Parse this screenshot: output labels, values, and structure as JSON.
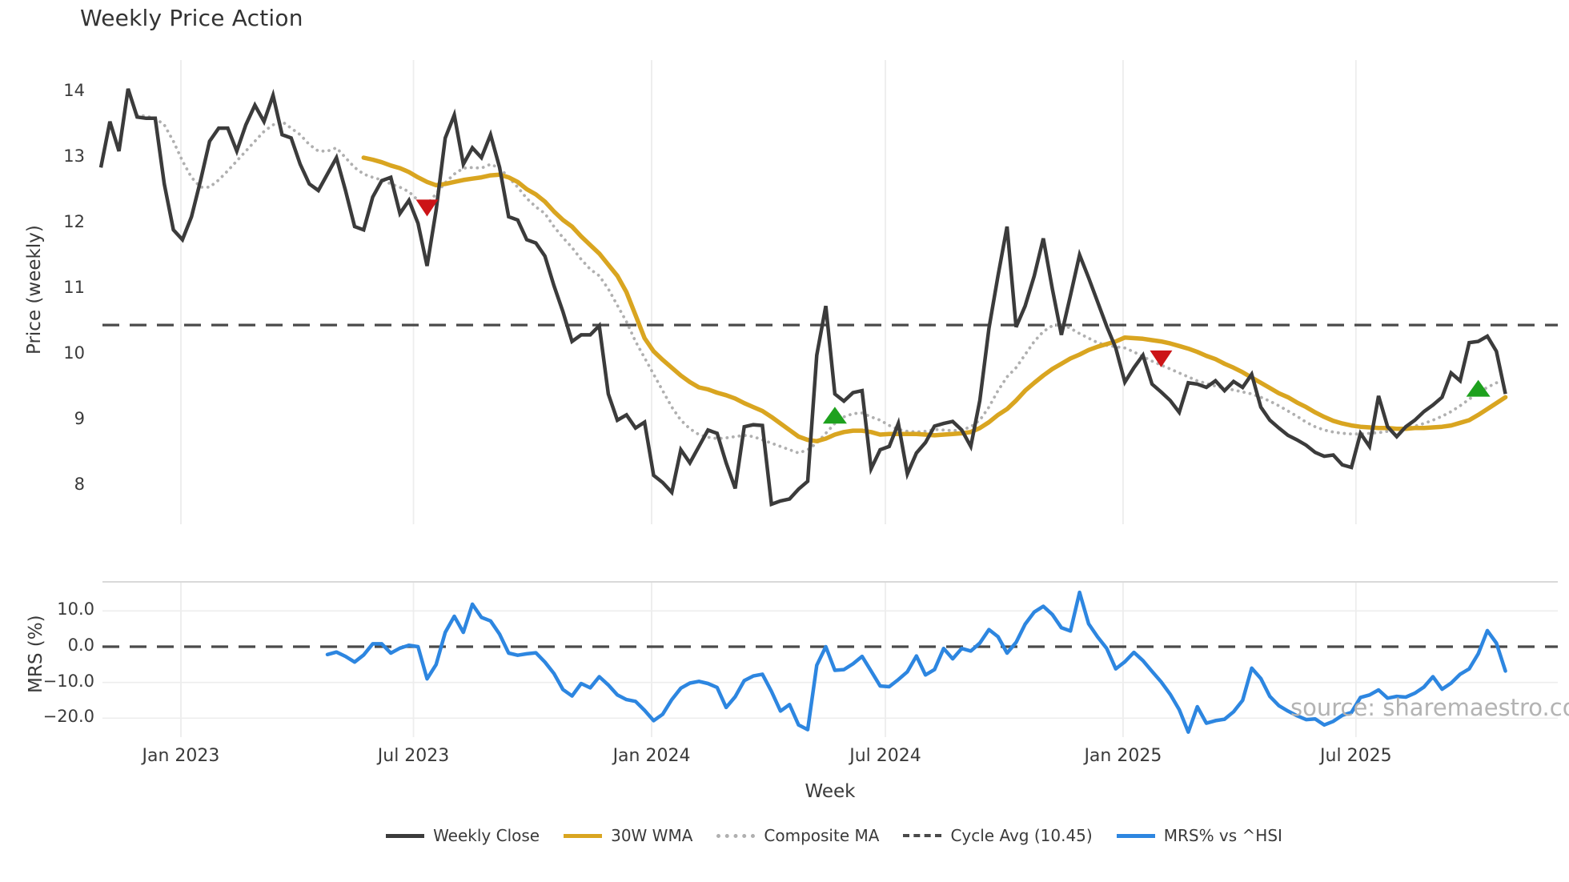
{
  "title": "Weekly Price Action",
  "watermark": "source: sharemaestro.com",
  "colors": {
    "weekly_close": "#3b3b3b",
    "wma_30w": "#d9a520",
    "composite_ma": "#b0b0b0",
    "cycle_avg": "#4a4a4a",
    "mrs_line": "#2d86e0",
    "sell_marker": "#cc1417",
    "buy_marker": "#1ea11e",
    "gridline": "#ededed",
    "panel_border": "#d9d9d9"
  },
  "legend": {
    "items": [
      {
        "label": "Weekly Close",
        "style": "line-dark"
      },
      {
        "label": "30W WMA",
        "style": "line-gold"
      },
      {
        "label": "Composite MA",
        "style": "line-dotted"
      },
      {
        "label": "Cycle Avg (10.45)",
        "style": "line-dashed"
      },
      {
        "label": "MRS% vs ^HSI",
        "style": "line-blue"
      }
    ]
  },
  "chart_data": [
    {
      "type": "line",
      "title": "Weekly Price Action",
      "xlabel": "Week",
      "ylabel": "Price (weekly)",
      "ylim": [
        7.4,
        14.5
      ],
      "y_ticks": [
        8,
        9,
        10,
        11,
        12,
        13,
        14
      ],
      "x_ticks": [
        {
          "label": "Jan 2023",
          "week": 8.83
        },
        {
          "label": "Jul 2023",
          "week": 34.5
        },
        {
          "label": "Jan 2024",
          "week": 60.78
        },
        {
          "label": "Jul 2024",
          "week": 86.57
        },
        {
          "label": "Jan 2025",
          "week": 112.8
        },
        {
          "label": "Jul 2025",
          "week": 138.5
        }
      ],
      "grid": "vertical",
      "legend_position": "bottom",
      "reference_lines": [
        {
          "name": "Cycle Avg",
          "value": 10.45,
          "style": "dashed"
        }
      ],
      "markers": {
        "sell_signals": [
          {
            "week": 36,
            "price": 12.24
          },
          {
            "week": 117,
            "price": 9.94
          }
        ],
        "buy_signals": [
          {
            "week": 81,
            "price": 9.07
          },
          {
            "week": 152,
            "price": 9.48
          }
        ]
      },
      "series": [
        {
          "name": "Weekly Close",
          "start_week": 0,
          "values": [
            12.85,
            13.55,
            13.1,
            14.05,
            13.62,
            13.6,
            13.6,
            12.6,
            11.9,
            11.75,
            12.1,
            12.65,
            13.25,
            13.45,
            13.45,
            13.1,
            13.5,
            13.8,
            13.55,
            13.95,
            13.35,
            13.3,
            12.9,
            12.6,
            12.5,
            12.75,
            13.0,
            12.5,
            11.95,
            11.9,
            12.4,
            12.65,
            12.7,
            12.15,
            12.35,
            12.0,
            11.35,
            12.2,
            13.3,
            13.65,
            12.9,
            13.15,
            13.0,
            13.35,
            12.85,
            12.1,
            12.05,
            11.75,
            11.7,
            11.5,
            11.05,
            10.65,
            10.2,
            10.3,
            10.3,
            10.44,
            9.4,
            9.0,
            9.08,
            8.88,
            8.97,
            8.16,
            8.05,
            7.9,
            8.55,
            8.35,
            8.6,
            8.85,
            8.8,
            8.35,
            7.96,
            8.9,
            8.93,
            8.92,
            7.72,
            7.77,
            7.8,
            7.95,
            8.07,
            9.99,
            10.74,
            9.4,
            9.29,
            9.42,
            9.45,
            8.26,
            8.55,
            8.6,
            8.95,
            8.18,
            8.5,
            8.66,
            8.91,
            8.95,
            8.98,
            8.85,
            8.6,
            9.3,
            10.4,
            11.2,
            11.95,
            10.42,
            10.74,
            11.2,
            11.77,
            11.0,
            10.3,
            10.9,
            11.52,
            11.17,
            10.8,
            10.43,
            10.1,
            9.58,
            9.8,
            9.99,
            9.55,
            9.43,
            9.3,
            9.12,
            9.57,
            9.55,
            9.5,
            9.6,
            9.45,
            9.59,
            9.5,
            9.7,
            9.2,
            9.0,
            8.88,
            8.77,
            8.7,
            8.62,
            8.51,
            8.45,
            8.47,
            8.32,
            8.28,
            8.8,
            8.6,
            9.37,
            8.9,
            8.75,
            8.9,
            9.0,
            9.13,
            9.23,
            9.35,
            9.72,
            9.6,
            10.18,
            10.2,
            10.28,
            10.05,
            9.4
          ]
        },
        {
          "name": "30W WMA",
          "start_week": 29,
          "values": [
            13.0,
            12.97,
            12.93,
            12.88,
            12.84,
            12.78,
            12.7,
            12.63,
            12.58,
            12.6,
            12.63,
            12.66,
            12.68,
            12.7,
            12.73,
            12.74,
            12.7,
            12.63,
            12.52,
            12.44,
            12.33,
            12.18,
            12.05,
            11.95,
            11.8,
            11.67,
            11.54,
            11.37,
            11.2,
            10.95,
            10.6,
            10.25,
            10.05,
            9.92,
            9.8,
            9.68,
            9.58,
            9.5,
            9.47,
            9.42,
            9.38,
            9.33,
            9.26,
            9.2,
            9.14,
            9.05,
            8.95,
            8.85,
            8.75,
            8.7,
            8.68,
            8.72,
            8.78,
            8.82,
            8.84,
            8.84,
            8.82,
            8.78,
            8.79,
            8.79,
            8.79,
            8.79,
            8.78,
            8.77,
            8.78,
            8.79,
            8.8,
            8.82,
            8.88,
            8.97,
            9.08,
            9.17,
            9.3,
            9.45,
            9.57,
            9.68,
            9.78,
            9.86,
            9.94,
            10.0,
            10.07,
            10.12,
            10.16,
            10.2,
            10.26,
            10.25,
            10.24,
            10.22,
            10.2,
            10.17,
            10.13,
            10.09,
            10.04,
            9.98,
            9.93,
            9.86,
            9.8,
            9.73,
            9.65,
            9.57,
            9.49,
            9.41,
            9.35,
            9.27,
            9.2,
            9.12,
            9.05,
            8.99,
            8.95,
            8.92,
            8.9,
            8.89,
            8.88,
            8.88,
            8.87,
            8.87,
            8.88,
            8.88,
            8.89,
            8.9,
            8.92,
            8.96,
            9.0,
            9.08,
            9.17,
            9.26,
            9.35
          ]
        },
        {
          "name": "Composite MA",
          "start_week": 4,
          "values": [
            13.65,
            13.63,
            13.6,
            13.5,
            13.25,
            12.95,
            12.7,
            12.55,
            12.55,
            12.66,
            12.8,
            12.95,
            13.1,
            13.25,
            13.4,
            13.5,
            13.55,
            13.45,
            13.35,
            13.2,
            13.1,
            13.1,
            13.15,
            13.0,
            12.85,
            12.75,
            12.7,
            12.66,
            12.6,
            12.55,
            12.48,
            12.35,
            12.29,
            12.45,
            12.62,
            12.75,
            12.84,
            12.85,
            12.84,
            12.9,
            12.84,
            12.7,
            12.55,
            12.38,
            12.25,
            12.15,
            11.95,
            11.78,
            11.63,
            11.45,
            11.3,
            11.2,
            11.0,
            10.75,
            10.5,
            10.2,
            9.95,
            9.7,
            9.45,
            9.2,
            9.0,
            8.87,
            8.78,
            8.74,
            8.72,
            8.73,
            8.75,
            8.77,
            8.75,
            8.7,
            8.65,
            8.6,
            8.55,
            8.5,
            8.55,
            8.65,
            8.8,
            8.95,
            9.05,
            9.1,
            9.11,
            9.05,
            9.0,
            8.92,
            8.86,
            8.83,
            8.82,
            8.83,
            8.86,
            8.85,
            8.84,
            8.85,
            8.9,
            9.0,
            9.2,
            9.45,
            9.66,
            9.8,
            10.0,
            10.2,
            10.35,
            10.44,
            10.46,
            10.4,
            10.32,
            10.25,
            10.18,
            10.14,
            10.12,
            10.1,
            10.04,
            9.97,
            9.9,
            9.84,
            9.78,
            9.72,
            9.66,
            9.6,
            9.56,
            9.52,
            9.49,
            9.46,
            9.43,
            9.4,
            9.35,
            9.29,
            9.22,
            9.14,
            9.06,
            8.97,
            8.9,
            8.85,
            8.82,
            8.8,
            8.79,
            8.79,
            8.8,
            8.81,
            8.83,
            8.85,
            8.88,
            8.91,
            8.95,
            9.0,
            9.06,
            9.13,
            9.22,
            9.32,
            9.42,
            9.5,
            9.57,
            9.6
          ]
        }
      ]
    },
    {
      "type": "line",
      "xlabel": "Week",
      "ylabel": "MRS (%)",
      "ylim": [
        -25,
        18
      ],
      "y_ticks": [
        10.0,
        0.0,
        -10.0,
        -20.0
      ],
      "y_tick_labels": [
        "10.0",
        "0.0",
        "−10.0",
        "−20.0"
      ],
      "grid": "both",
      "reference_lines": [
        {
          "name": "Zero",
          "value": 0,
          "style": "dashed"
        }
      ],
      "series": [
        {
          "name": "MRS% vs ^HSI",
          "start_week": 25,
          "values": [
            -2.2,
            -1.5,
            -2.7,
            -4.3,
            -2.3,
            0.8,
            0.8,
            -1.8,
            -0.4,
            0.4,
            0.0,
            -9.0,
            -5.0,
            4.0,
            8.5,
            4.0,
            11.9,
            8.2,
            7.2,
            3.5,
            -1.8,
            -2.4,
            -2.0,
            -1.7,
            -4.3,
            -7.5,
            -12.0,
            -13.8,
            -10.3,
            -11.5,
            -8.4,
            -10.7,
            -13.5,
            -14.8,
            -15.3,
            -17.8,
            -20.7,
            -18.9,
            -14.8,
            -11.6,
            -10.2,
            -9.7,
            -10.3,
            -11.4,
            -17.0,
            -14.0,
            -9.5,
            -8.2,
            -7.7,
            -12.5,
            -18.0,
            -16.2,
            -21.9,
            -23.2,
            -5.2,
            0.0,
            -6.6,
            -6.4,
            -4.8,
            -2.7,
            -6.8,
            -11.0,
            -11.2,
            -9.2,
            -7.0,
            -2.6,
            -7.9,
            -6.4,
            -0.5,
            -3.4,
            -0.5,
            -1.2,
            1.0,
            4.8,
            2.8,
            -1.8,
            1.2,
            6.3,
            9.7,
            11.3,
            9.0,
            5.3,
            4.4,
            15.2,
            6.4,
            2.7,
            -0.5,
            -6.2,
            -4.2,
            -1.6,
            -3.9,
            -6.9,
            -9.8,
            -13.3,
            -17.6,
            -23.9,
            -16.8,
            -21.4,
            -20.7,
            -20.3,
            -18.2,
            -15.0,
            -6.0,
            -8.9,
            -13.9,
            -16.5,
            -18.0,
            -19.3,
            -20.4,
            -20.2,
            -21.9,
            -20.9,
            -19.2,
            -18.4,
            -14.2,
            -13.5,
            -12.1,
            -14.4,
            -13.9,
            -14.1,
            -13.0,
            -11.3,
            -8.4,
            -11.9,
            -10.2,
            -7.7,
            -6.2,
            -2.0,
            4.5,
            1.0,
            -6.8
          ]
        }
      ]
    }
  ]
}
